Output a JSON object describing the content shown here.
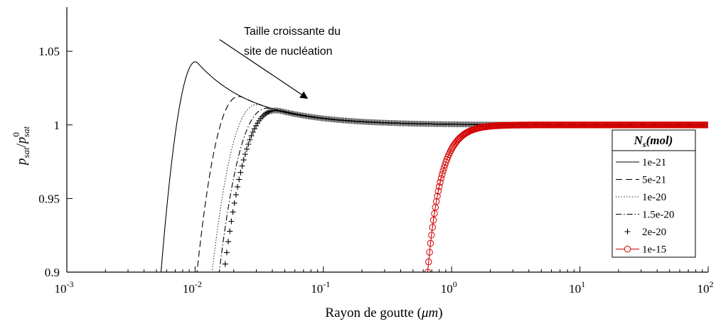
{
  "chart_data": {
    "type": "line",
    "xlabel_text": "Rayon de goutte (",
    "xlabel_unit": "μm",
    "xlabel_close": ")",
    "ylabel_main": "p",
    "ylabel_sub": "sat",
    "ylabel_slash": "/",
    "ylabel_sup": "0",
    "x_scale": "log",
    "xlim": [
      0.001,
      100
    ],
    "ylim": [
      0.9,
      1.08
    ],
    "x_ticks": [
      {
        "value": 0.001,
        "base": "10",
        "exp": "-3"
      },
      {
        "value": 0.01,
        "base": "10",
        "exp": "-2"
      },
      {
        "value": 0.1,
        "base": "10",
        "exp": "-1"
      },
      {
        "value": 1,
        "base": "10",
        "exp": "0"
      },
      {
        "value": 10,
        "base": "10",
        "exp": "1"
      },
      {
        "value": 100,
        "base": "10",
        "exp": "2"
      }
    ],
    "y_ticks": [
      {
        "value": 0.9,
        "label": "0.9"
      },
      {
        "value": 0.95,
        "label": "0.95"
      },
      {
        "value": 1.0,
        "label": "1"
      },
      {
        "value": 1.05,
        "label": "1.05"
      }
    ],
    "grid": false,
    "annotation": {
      "line1": "Taille croissante du",
      "line2": "site de nucléation",
      "arrow_from": {
        "x": 0.0155,
        "y": 1.058
      },
      "arrow_to": {
        "x": 0.075,
        "y": 1.018
      }
    },
    "legend": {
      "title_main": "N",
      "title_sub": "s",
      "title_rest": "(mol)",
      "placement": "right"
    },
    "series": [
      {
        "name": "1e-21",
        "style": "solid",
        "color": "#000000",
        "r_min": 0.0052,
        "peak_r": 0.0105,
        "peak_y": 1.0415,
        "tail_k": 0.00044
      },
      {
        "name": "5e-21",
        "style": "dashed",
        "color": "#000000",
        "r_min": 0.0098,
        "peak_r": 0.024,
        "peak_y": 1.0185,
        "tail_k": 0.00044
      },
      {
        "name": "1e-20",
        "style": "dotted",
        "color": "#000000",
        "r_min": 0.0128,
        "peak_r": 0.034,
        "peak_y": 1.013,
        "tail_k": 0.00044
      },
      {
        "name": "1.5e-20",
        "style": "dashdot",
        "color": "#000000",
        "r_min": 0.0145,
        "peak_r": 0.042,
        "peak_y": 1.0105,
        "tail_k": 0.00044
      },
      {
        "name": "2e-20",
        "style": "plus",
        "color": "#000000",
        "r_min": 0.0158,
        "peak_r": 0.05,
        "peak_y": 1.009,
        "tail_k": 0.00044
      },
      {
        "name": "1e-15",
        "style": "circle",
        "color": "#d40000",
        "r_min": 0.65,
        "peak_r": 0,
        "peak_y": 1.0,
        "tail_k": 0
      }
    ]
  }
}
